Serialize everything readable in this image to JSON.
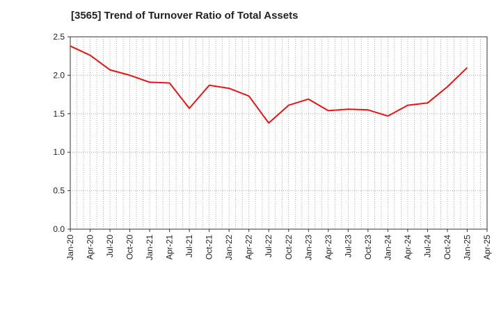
{
  "chart_data": {
    "type": "line",
    "title": "[3565]  Trend of Turnover Ratio of Total Assets",
    "xlabel": "",
    "ylabel": "",
    "ylim": [
      0,
      2.5
    ],
    "yticks": [
      "0.0",
      "0.5",
      "1.0",
      "1.5",
      "2.0",
      "2.5"
    ],
    "x_ticks": [
      "Jan-20",
      "Apr-20",
      "Jul-20",
      "Oct-20",
      "Jan-21",
      "Apr-21",
      "Jul-21",
      "Oct-21",
      "Jan-22",
      "Apr-22",
      "Jul-22",
      "Oct-22",
      "Jan-23",
      "Apr-23",
      "Jul-23",
      "Oct-23",
      "Jan-24",
      "Apr-24",
      "Jul-24",
      "Oct-24",
      "Jan-25",
      "Apr-25"
    ],
    "grid": true,
    "series": [
      {
        "color": "#ee1111",
        "x": [
          "Jan-20",
          "Apr-20",
          "Jul-20",
          "Oct-20",
          "Jan-21",
          "Apr-21",
          "Jul-21",
          "Oct-21",
          "Jan-22",
          "Apr-22",
          "Jul-22",
          "Oct-22",
          "Jan-23",
          "Apr-23",
          "Jul-23",
          "Oct-23",
          "Jan-24",
          "Apr-24",
          "Jul-24",
          "Oct-24",
          "Jan-25"
        ],
        "values": [
          2.38,
          2.26,
          2.07,
          2.0,
          1.91,
          1.9,
          1.57,
          1.87,
          1.83,
          1.73,
          1.38,
          1.61,
          1.69,
          1.54,
          1.56,
          1.55,
          1.47,
          1.61,
          1.64,
          1.85,
          2.1
        ]
      }
    ]
  }
}
